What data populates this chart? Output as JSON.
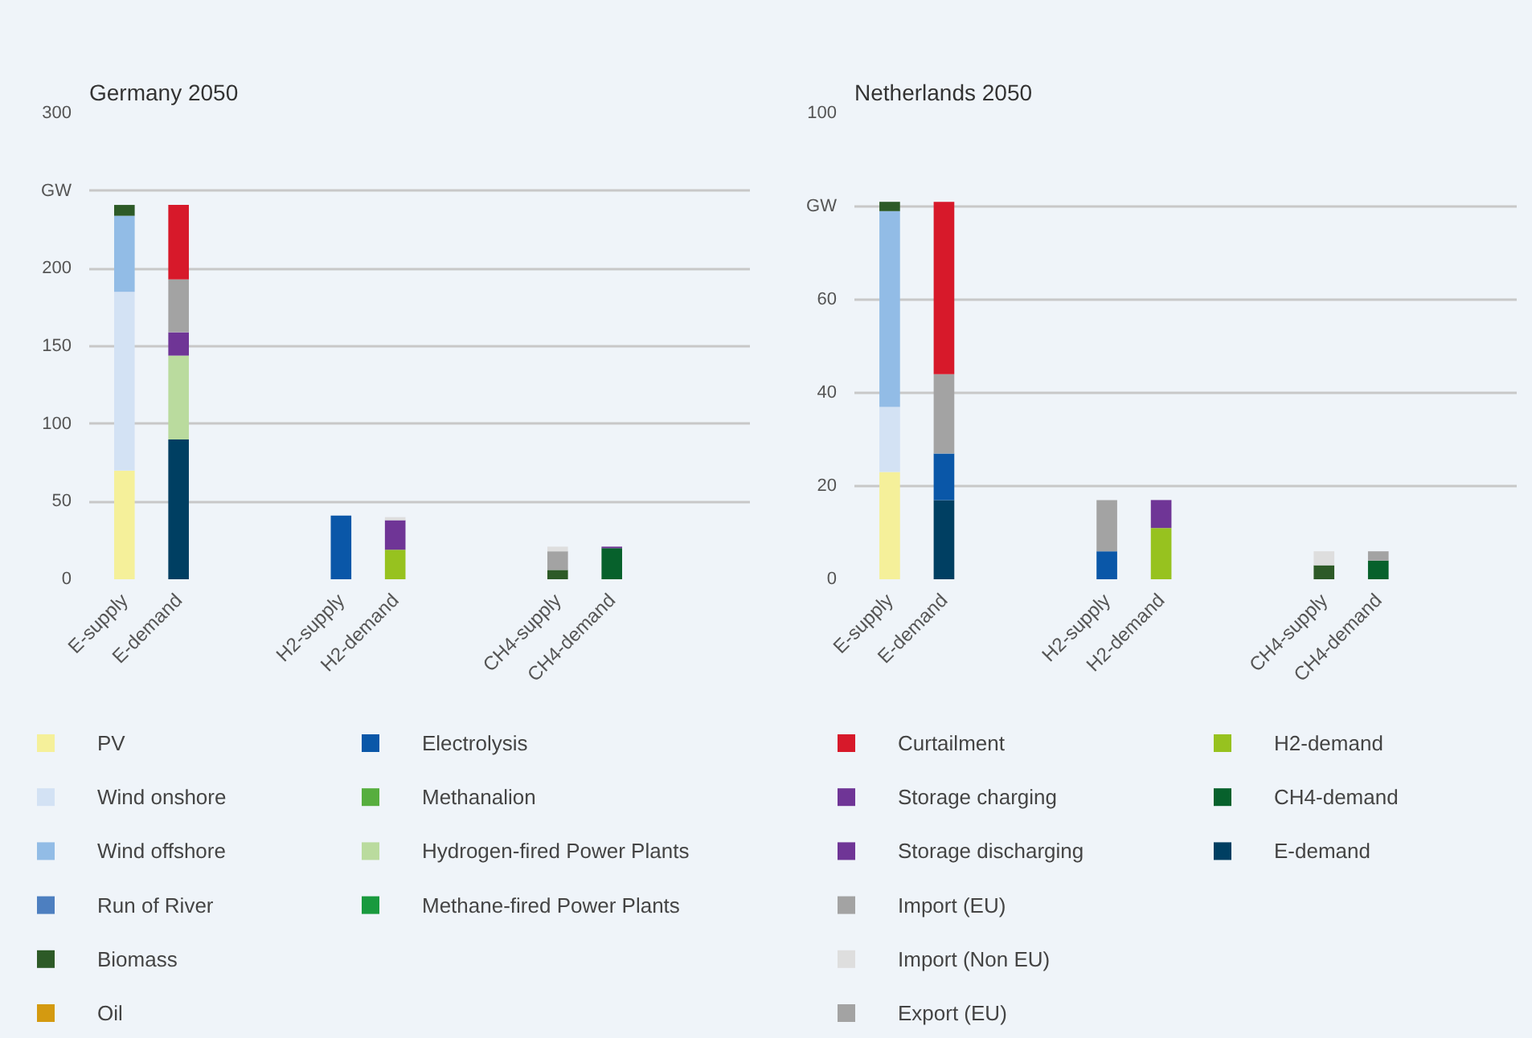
{
  "chart_data": [
    {
      "type": "bar",
      "title": "Germany 2050",
      "stacked": true,
      "grid": "y",
      "legend": "bottom",
      "categories": [
        "E-supply",
        "E-demand",
        null,
        null,
        "H2-supply",
        "H2-demand",
        null,
        null,
        "CH4-supply",
        "CH4-demand",
        null,
        null
      ],
      "ylim": [
        0,
        300
      ],
      "yticks": [
        0,
        50,
        100,
        150,
        200,
        {
          "value": 250,
          "label": "GW"
        },
        300
      ],
      "series": [
        {
          "name": "PV",
          "color": "#f5f09a",
          "values": [
            70,
            null,
            null,
            null,
            null,
            null,
            null,
            null,
            null,
            null,
            null,
            null
          ]
        },
        {
          "name": "Wind onshore",
          "color": "#d3e2f4",
          "values": [
            115,
            null,
            null,
            null,
            null,
            null,
            null,
            null,
            null,
            null,
            null,
            null
          ]
        },
        {
          "name": "Wind offshore",
          "color": "#92bce6",
          "values": [
            49,
            null,
            null,
            null,
            null,
            null,
            null,
            null,
            null,
            null,
            null,
            null
          ]
        },
        {
          "name": "Run of River",
          "color": "#4d7fc0",
          "values": [
            null,
            null,
            null,
            null,
            null,
            null,
            null,
            null,
            null,
            null,
            null,
            null
          ]
        },
        {
          "name": "Biomass",
          "color": "#2d5a27",
          "values": [
            7,
            null,
            null,
            null,
            null,
            null,
            null,
            null,
            6,
            null,
            null,
            null
          ]
        },
        {
          "name": "Oil",
          "color": "#d49a10",
          "values": [
            null,
            null,
            null,
            null,
            null,
            null,
            null,
            null,
            null,
            null,
            null,
            null
          ]
        },
        {
          "name": "E-demand",
          "color": "#003f62",
          "values": [
            null,
            90,
            null,
            null,
            null,
            null,
            null,
            null,
            null,
            null,
            null,
            null
          ]
        },
        {
          "name": "H2-demand",
          "color": "#97c21f",
          "values": [
            null,
            null,
            null,
            null,
            null,
            19,
            null,
            null,
            null,
            null,
            null,
            null
          ]
        },
        {
          "name": "CH4-demand",
          "color": "#07612c",
          "values": [
            null,
            null,
            null,
            null,
            null,
            null,
            null,
            null,
            null,
            20,
            null,
            null
          ]
        },
        {
          "name": "Electrolysis",
          "color": "#0a57a8",
          "values": [
            null,
            null,
            null,
            null,
            41,
            null,
            null,
            null,
            null,
            null,
            null,
            null
          ]
        },
        {
          "name": "Methanalion",
          "color": "#57ae3e",
          "values": [
            null,
            null,
            null,
            null,
            null,
            null,
            null,
            null,
            null,
            null,
            null,
            null
          ]
        },
        {
          "name": "Hydrogen-fired Power Plants",
          "color": "#badb9e",
          "values": [
            null,
            54,
            null,
            null,
            null,
            null,
            null,
            null,
            null,
            null,
            null,
            null
          ]
        },
        {
          "name": "Methane-fired Power Plants",
          "color": "#199a3e",
          "values": [
            null,
            null,
            null,
            null,
            null,
            null,
            null,
            null,
            null,
            null,
            null,
            null
          ]
        },
        {
          "name": "Storage charging",
          "color": "#6f3596",
          "values": [
            null,
            15,
            null,
            null,
            null,
            19,
            null,
            null,
            null,
            1,
            null,
            null
          ]
        },
        {
          "name": "Storage discharging",
          "color": "#6f3596",
          "values": [
            null,
            null,
            null,
            null,
            null,
            null,
            null,
            null,
            null,
            null,
            null,
            null
          ]
        },
        {
          "name": "Import (EU)",
          "color": "#a3a3a3",
          "values": [
            null,
            null,
            null,
            null,
            null,
            null,
            null,
            null,
            12,
            null,
            null,
            null
          ]
        },
        {
          "name": "Import (Non EU)",
          "color": "#dedede",
          "values": [
            null,
            null,
            null,
            null,
            null,
            2,
            null,
            null,
            3,
            null,
            null,
            null
          ]
        },
        {
          "name": "Export (EU)",
          "color": "#a3a3a3",
          "values": [
            null,
            34,
            null,
            null,
            null,
            null,
            null,
            null,
            null,
            null,
            null,
            null
          ]
        },
        {
          "name": "Curtailment",
          "color": "#d7192a",
          "values": [
            null,
            48,
            null,
            null,
            null,
            null,
            null,
            null,
            null,
            null,
            null,
            null
          ]
        }
      ]
    },
    {
      "type": "bar",
      "title": "Netherlands 2050",
      "stacked": true,
      "grid": "y",
      "categories": [
        "E-supply",
        "E-demand",
        null,
        null,
        "H2-supply",
        "H2-demand",
        null,
        null,
        "CH4-supply",
        "CH4-demand",
        null,
        null
      ],
      "ylim": [
        0,
        100
      ],
      "yticks": [
        0,
        20,
        40,
        60,
        {
          "value": 80,
          "label": "GW"
        },
        100
      ],
      "series": [
        {
          "color": "#f5f09a",
          "values": [
            23,
            null,
            null,
            null,
            null,
            null,
            null,
            null,
            null,
            null,
            null,
            null
          ]
        },
        {
          "color": "#d3e2f4",
          "values": [
            14,
            null,
            null,
            null,
            null,
            null,
            null,
            null,
            null,
            null,
            null,
            null
          ]
        },
        {
          "color": "#92bce6",
          "values": [
            42,
            null,
            null,
            null,
            null,
            null,
            null,
            null,
            null,
            null,
            null,
            null
          ]
        },
        {
          "color": "#2d5a27",
          "values": [
            2,
            null,
            null,
            null,
            null,
            null,
            null,
            null,
            3,
            null,
            null,
            null
          ]
        },
        {
          "color": "#003f62",
          "values": [
            null,
            17,
            null,
            null,
            null,
            null,
            null,
            null,
            null,
            null,
            null,
            null
          ]
        },
        {
          "color": "#97c21f",
          "values": [
            null,
            null,
            null,
            null,
            null,
            11,
            null,
            null,
            null,
            null,
            null,
            null
          ]
        },
        {
          "color": "#07612c",
          "values": [
            null,
            null,
            null,
            null,
            null,
            null,
            null,
            null,
            null,
            4,
            null,
            null
          ]
        },
        {
          "color": "#0a57a8",
          "values": [
            null,
            10,
            null,
            null,
            6,
            null,
            null,
            null,
            null,
            null,
            null,
            null
          ]
        },
        {
          "color": "#6f3596",
          "values": [
            null,
            null,
            null,
            null,
            null,
            6,
            null,
            null,
            null,
            null,
            null,
            null
          ]
        },
        {
          "color": "#a3a3a3",
          "values": [
            null,
            null,
            null,
            null,
            11,
            null,
            null,
            null,
            null,
            null,
            null,
            null
          ]
        },
        {
          "color": "#dedede",
          "values": [
            null,
            null,
            null,
            null,
            null,
            null,
            null,
            null,
            3,
            null,
            null,
            null
          ]
        },
        {
          "color": "#a3a3a3",
          "values": [
            null,
            17,
            null,
            null,
            null,
            null,
            null,
            null,
            null,
            2,
            null,
            null
          ]
        },
        {
          "color": "#d7192a",
          "values": [
            null,
            37,
            null,
            null,
            null,
            null,
            null,
            null,
            null,
            null,
            null,
            null
          ]
        }
      ]
    }
  ]
}
